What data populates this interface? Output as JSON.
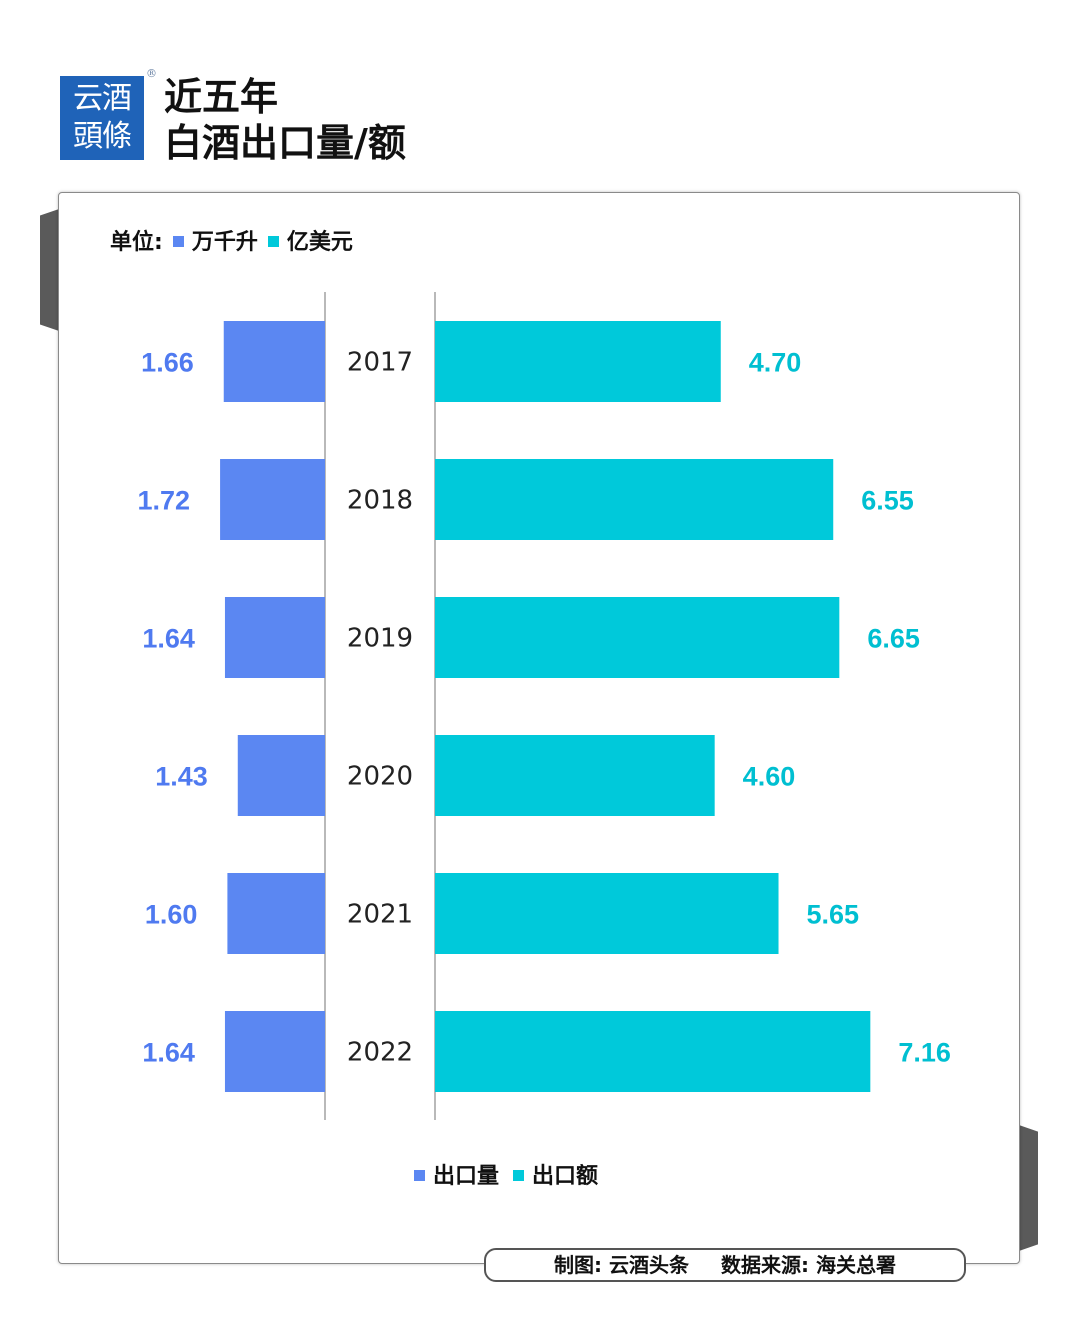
{
  "brand": {
    "logo_line1": "云酒",
    "logo_line2": "頭條",
    "registered_mark": "®"
  },
  "header": {
    "title_line1": "近五年",
    "title_line2": "白酒出口量/额"
  },
  "unit_label": {
    "prefix": "单位:",
    "volume_unit": "万千升",
    "value_unit": "亿美元"
  },
  "colors": {
    "volume": "#5b87f2",
    "value": "#00c9da",
    "volume_text": "#4f7af0",
    "value_text": "#00bfd1"
  },
  "chart_data": {
    "type": "bar",
    "orientation": "horizontal-butterfly",
    "categories": [
      "2017",
      "2018",
      "2019",
      "2020",
      "2021",
      "2022"
    ],
    "series": [
      {
        "name": "出口量",
        "unit": "万千升",
        "values": [
          1.66,
          1.72,
          1.64,
          1.43,
          1.6,
          1.64
        ],
        "labels": [
          "1.66",
          "1.72",
          "1.64",
          "1.43",
          "1.60",
          "1.64"
        ]
      },
      {
        "name": "出口额",
        "unit": "亿美元",
        "values": [
          4.7,
          6.55,
          6.65,
          4.6,
          5.65,
          7.16
        ],
        "labels": [
          "4.70",
          "6.55",
          "6.65",
          "4.60",
          "5.65",
          "7.16"
        ]
      }
    ],
    "title": "近五年白酒出口量/额",
    "legend": [
      "出口量",
      "出口额"
    ],
    "legend_position": "bottom-center"
  },
  "footer": {
    "made_by": "制图: 云酒头条",
    "source": "数据来源: 海关总署"
  }
}
